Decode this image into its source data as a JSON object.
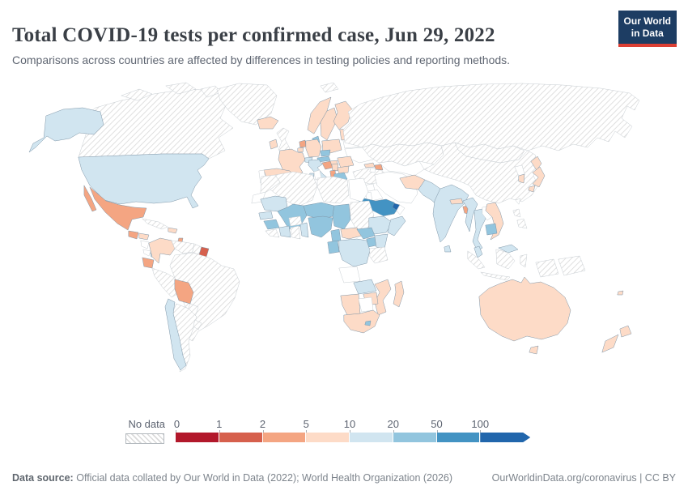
{
  "header": {
    "title": "Total COVID-19 tests per confirmed case, Jun 29, 2022",
    "subtitle": "Comparisons across countries are affected by differences in testing policies and reporting methods.",
    "logo_line1": "Our World",
    "logo_line2": "in Data",
    "logo_bg_color": "#1d3d63",
    "logo_accent_color": "#dc3f34"
  },
  "legend": {
    "no_data_label": "No data",
    "tick_labels": [
      "0",
      "1",
      "2",
      "5",
      "10",
      "20",
      "50",
      "100"
    ]
  },
  "footer": {
    "source_label": "Data source:",
    "source_text": "Official data collated by Our World in Data (2022); World Health Organization (2026)",
    "link_text": "OurWorldinData.org/coronavirus | CC BY"
  },
  "chart_data": {
    "type": "heatmap",
    "subtype": "choropleth world map",
    "title": "Total COVID-19 tests per confirmed case",
    "date": "Jun 29, 2022",
    "unit": "tests per confirmed case",
    "legend_position": "bottom",
    "no_data_key": "no-data",
    "bin_keys": [
      "0-1",
      "1-2",
      "2-5",
      "5-10",
      "10-20",
      "20-50",
      "50-100",
      "100+"
    ],
    "bin_colors": [
      "#b2182b",
      "#d6604d",
      "#f4a582",
      "#fddbc7",
      "#d1e5f0",
      "#92c5de",
      "#4393c3",
      "#2166ac"
    ],
    "countries": {
      "United States": "10-20",
      "Canada": "no-data",
      "Greenland": "no-data",
      "Mexico": "2-5",
      "Guatemala": "2-5",
      "Honduras": "5-10",
      "Nicaragua": "no-data",
      "Costa Rica": "no-data",
      "Panama": "10-20",
      "Cuba": "no-data",
      "Dominican Republic": "5-10",
      "Trinidad and Tobago": "2-5",
      "Colombia": "5-10",
      "Venezuela": "no-data",
      "Guyana": "no-data",
      "Suriname": "1-2",
      "Ecuador": "2-5",
      "Peru": "no-data",
      "Brazil": "no-data",
      "Bolivia": "2-5",
      "Paraguay": "no-data",
      "Argentina": "no-data",
      "Chile": "10-20",
      "Uruguay": "no-data",
      "Iceland": "5-10",
      "Ireland": "5-10",
      "United Kingdom": "no-data",
      "Norway": "5-10",
      "Sweden": "5-10",
      "Finland": "5-10",
      "Denmark": "20-50",
      "Netherlands": "2-5",
      "Belgium": "5-10",
      "Germany": "5-10",
      "France": "5-10",
      "Spain": "5-10",
      "Portugal": "no-data",
      "Switzerland": "10-20",
      "Czechia": "20-50",
      "Austria": "20-50",
      "Poland": "5-10",
      "Lithuania": "5-10",
      "Belarus": "no-data",
      "Ukraine": "no-data",
      "Hungary": "5-10",
      "Romania": "5-10",
      "Croatia": "2-5",
      "Serbia": "5-10",
      "Bulgaria": "5-10",
      "Albania": "2-5",
      "Greece": "20-50",
      "Italy": "10-20",
      "Russia": "no-data",
      "Kazakhstan": "no-data",
      "Uzbekistan": "no-data",
      "Mongolia": "no-data",
      "China": "no-data",
      "North Korea": "no-data",
      "South Korea": "5-10",
      "Japan": "5-10",
      "Taiwan": "no-data",
      "Turkey": "no-data",
      "Cyprus": "2-5",
      "Georgia": "5-10",
      "Azerbaijan": "2-5",
      "Armenia": "no-data",
      "Syria": "no-data",
      "Iraq": "no-data",
      "Iran": "no-data",
      "Jordan": "no-data",
      "Saudi Arabia": "50-100",
      "United Arab Emirates": "100+",
      "Oman": "no-data",
      "Yemen": "no-data",
      "Afghanistan": "5-10",
      "Pakistan": "10-20",
      "India": "10-20",
      "Nepal": "5-10",
      "Bangladesh": "2-5",
      "Sri Lanka": "10-20",
      "Myanmar": "10-20",
      "Thailand": "10-20",
      "Laos": "no-data",
      "Vietnam": "5-10",
      "Cambodia": "20-50",
      "Malaysia": "10-20",
      "Indonesia": "no-data",
      "Papua New Guinea": "no-data",
      "Philippines": "no-data",
      "Morocco": "no-data",
      "Western Sahara": "no-data",
      "Algeria": "no-data",
      "Tunisia": "no-data",
      "Libya": "no-data",
      "Egypt": "no-data",
      "Sudan": "no-data",
      "Mauritania": "10-20",
      "Mali": "20-50",
      "Senegal": "10-20",
      "Guinea": "20-50",
      "Sierra Leone": "no-data",
      "Cote d'Ivoire": "10-20",
      "Burkina Faso": "no-data",
      "Ghana": "no-data",
      "Benin": "10-20",
      "Niger": "20-50",
      "Nigeria": "20-50",
      "Chad": "20-50",
      "Ethiopia": "10-20",
      "Somalia": "10-20",
      "Cameroon": "20-50",
      "Central African Republic": "5-10",
      "South Sudan": "20-50",
      "Gabon": "20-50",
      "Uganda": "20-50",
      "Kenya": "10-20",
      "Democratic Republic of Congo": "10-20",
      "Tanzania": "no-data",
      "Angola": "no-data",
      "Zambia": "10-20",
      "Mozambique": "5-10",
      "Zimbabwe": "5-10",
      "Namibia": "5-10",
      "Botswana": "no-data",
      "South Africa": "5-10",
      "Lesotho": "20-50",
      "Madagascar": "5-10",
      "Australia": "5-10",
      "New Zealand": "5-10",
      "Fiji": "5-10",
      "Svalbard": "no-data"
    }
  }
}
